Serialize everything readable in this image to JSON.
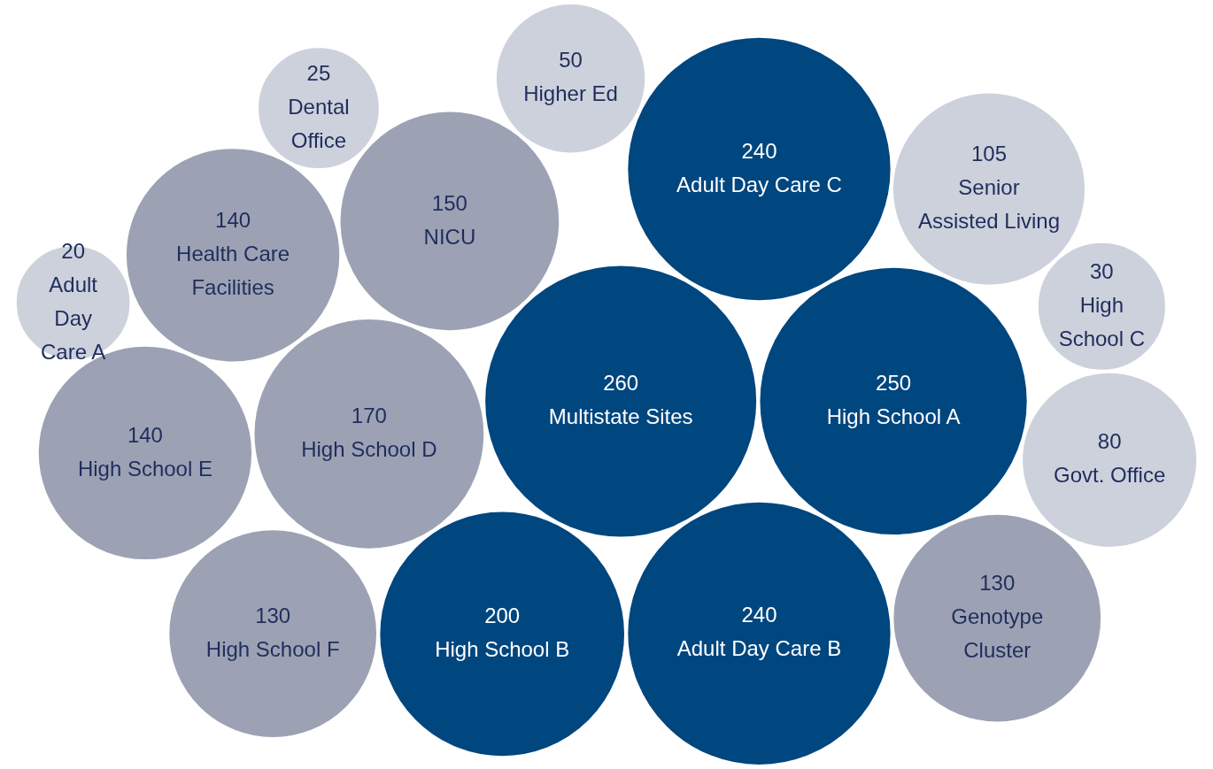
{
  "chart_data": {
    "type": "other",
    "data_labels": true,
    "categories": [
      "Adult Day Care A",
      "Adult Day Care B",
      "High School D",
      "Dental Office",
      "High School A",
      "Health Care Facilities",
      "High School C",
      "Adult Day Care C",
      "Govt. Office",
      "High School F",
      "NICU",
      "Multistate Sites",
      "Genotype Cluster",
      "High School B",
      "High School E",
      "Higher Ed",
      "Senior Assisted Living"
    ],
    "values": [
      20,
      240,
      170,
      25,
      250,
      140,
      30,
      240,
      80,
      130,
      150,
      260,
      130,
      200,
      140,
      50,
      105
    ],
    "colors": [
      "#cdd1dc",
      "#00467f",
      "#9ca2b4",
      "#cdd1dc",
      "#00467f",
      "#9ca2b4",
      "#cdd1dc",
      "#00467f",
      "#cdd1dc",
      "#9ca2b4",
      "#9ca2b4",
      "#00467f",
      "#9ca2b4",
      "#00467f",
      "#9ca2b4",
      "#cdd1dc",
      "#cdd1dc"
    ]
  }
}
